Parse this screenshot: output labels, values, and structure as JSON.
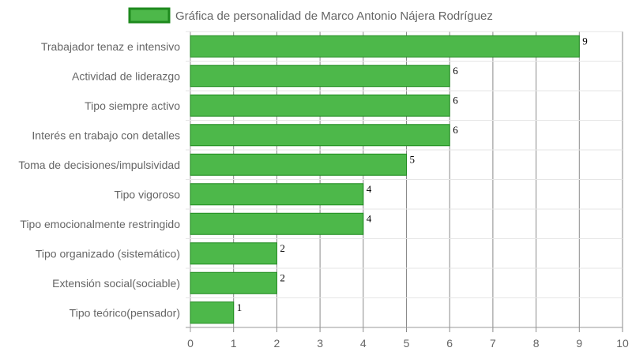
{
  "chart_data": {
    "type": "bar",
    "orientation": "horizontal",
    "legend": {
      "position": "top",
      "label": "Gráfica de personalidad de Marco Antonio Nájera Rodríguez"
    },
    "bar_color": "#4db84a",
    "bar_border_color": "#1e8a1e",
    "categories": [
      "Trabajador tenaz e intensivo",
      "Actividad de liderazgo",
      "Tipo siempre activo",
      "Interés en trabajo con detalles",
      "Toma de decisiones/impulsividad",
      "Tipo vigoroso",
      "Tipo emocionalmente restringido",
      "Tipo organizado (sistemático)",
      "Extensión social(sociable)",
      "Tipo teórico(pensador)"
    ],
    "values": [
      9,
      6,
      6,
      6,
      5,
      4,
      4,
      2,
      2,
      1
    ],
    "xlim": [
      0,
      10
    ],
    "x_ticks": [
      "0",
      "1",
      "2",
      "3",
      "4",
      "5",
      "6",
      "7",
      "8",
      "9",
      "10"
    ],
    "grid": true
  }
}
